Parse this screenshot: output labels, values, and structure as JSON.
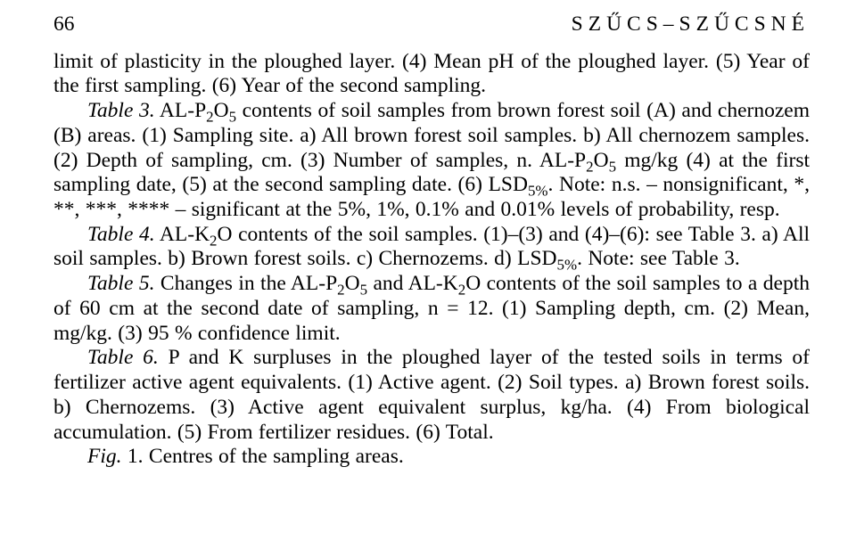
{
  "header": {
    "page_number": "66",
    "running_head": "SZŰCS–SZŰCSNÉ"
  },
  "body": {
    "p1_a": "limit of plasticity in the ploughed layer. (4) Mean pH of the ploughed layer. (5) Year of the first sampling. (6) Year of the second sampling.",
    "p2_lbl": "Table 3.",
    "p2_a": " AL-P",
    "p2_sub1": "2",
    "p2_b": "O",
    "p2_sub2": "5",
    "p2_c": " contents of soil samples from brown forest soil (A) and chernozem (B) areas. (1) Sampling site. a) All brown forest soil samples. b) All chernozem samples. (2) Depth of sampling, cm. (3) Number of samples, n. AL-P",
    "p2_sub3": "2",
    "p2_d": "O",
    "p2_sub4": "5",
    "p2_e": " mg/kg (4) at the first sampling date, (5) at the second sampling date. (6) LSD",
    "p2_sub5": "5%",
    "p2_f": ". Note: n.s. – nonsignificant, *, **, ***, **** – significant at the 5%, 1%, 0.1% and 0.01% levels of probability, resp.",
    "p3_lbl": "Table 4.",
    "p3_a": " AL-K",
    "p3_sub1": "2",
    "p3_b": "O contents of the soil samples. (1)–(3) and (4)–(6): see Table 3. a) All soil samples. b) Brown forest soils. c) Chernozems. d) LSD",
    "p3_sub2": "5%",
    "p3_c": ". Note: see Table 3.",
    "p4_lbl": "Table 5.",
    "p4_a": " Changes in the AL-P",
    "p4_sub1": "2",
    "p4_b": "O",
    "p4_sub2": "5",
    "p4_c": " and AL-K",
    "p4_sub3": "2",
    "p4_d": "O contents of the soil samples to a depth of 60 cm at the second date of sampling, n = 12. (1) Sampling depth, cm. (2) Mean, mg/kg. (3) 95 % confidence limit.",
    "p5_lbl": "Table 6.",
    "p5_a": " P and K surpluses in the ploughed layer of the tested soils in terms of fertilizer active agent equivalents. (1) Active agent. (2) Soil types. a) Brown forest soils.  b) Chernozems. (3) Active agent equivalent surplus, kg/ha. (4) From biological accumulation. (5) From fertilizer residues. (6) Total.",
    "p6_lbl": "Fig. ",
    "p6_a": " 1. Centres of the sampling areas."
  }
}
